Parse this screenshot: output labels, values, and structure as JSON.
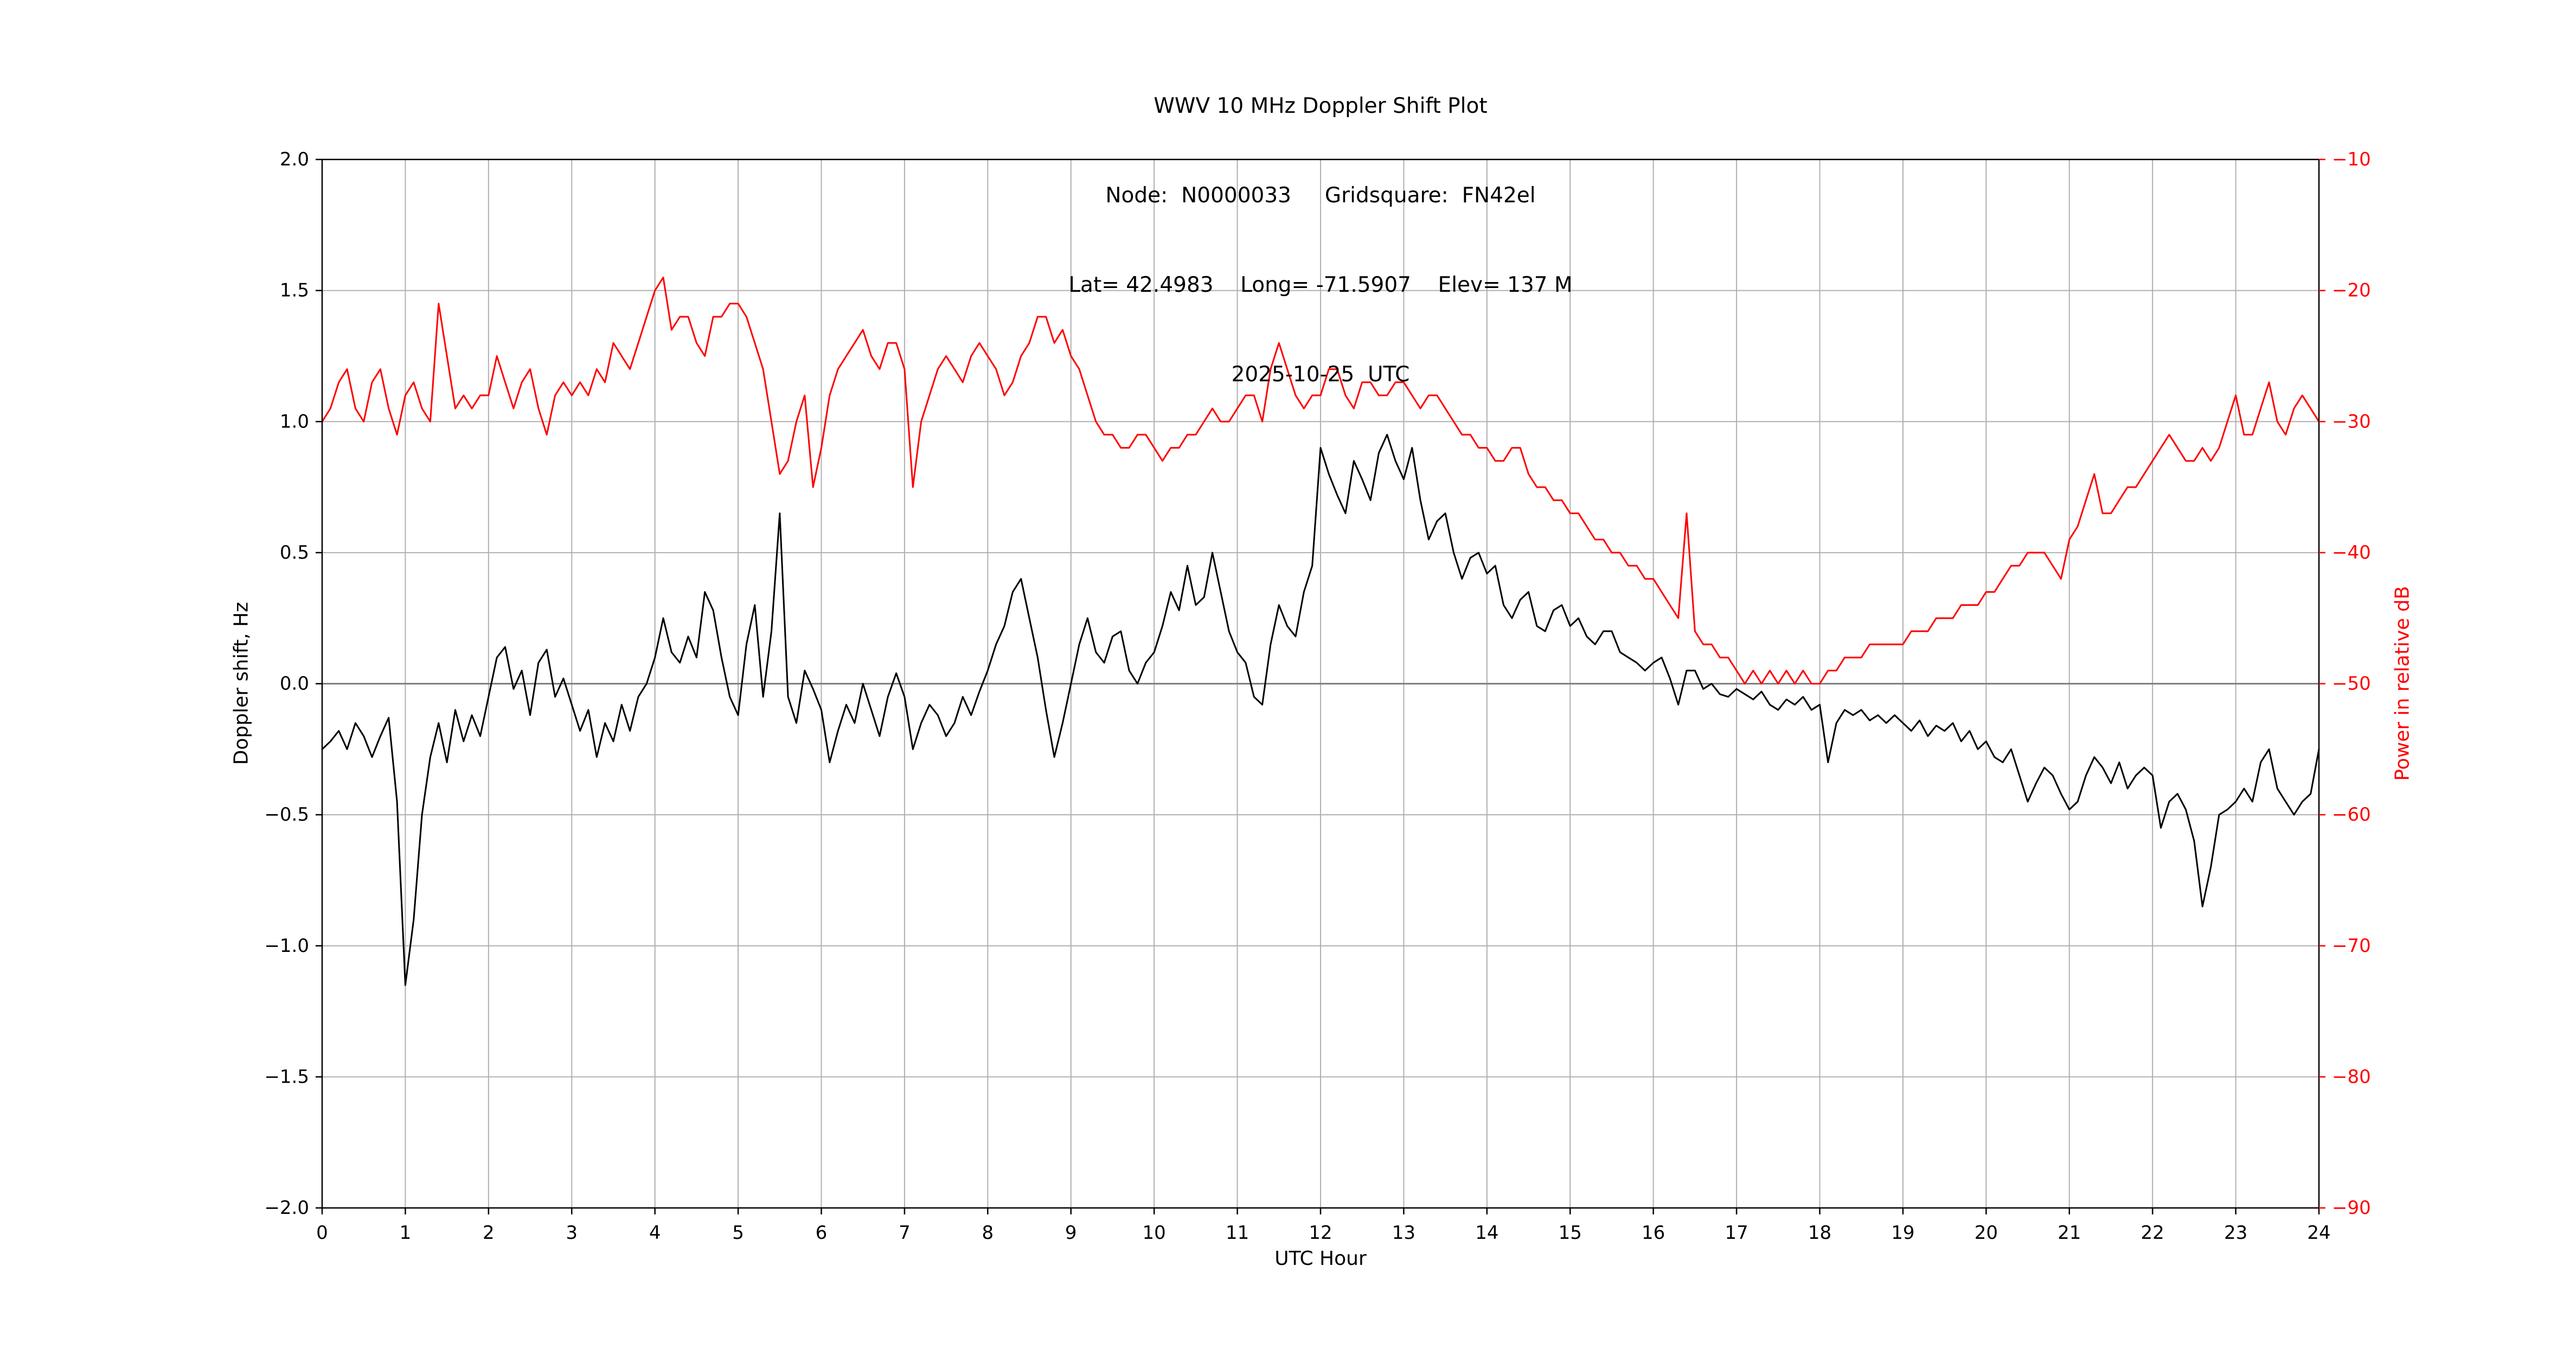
{
  "title": {
    "line1": "WWV 10 MHz Doppler Shift Plot",
    "line2": "Node:  N0000033     Gridsquare:  FN42el",
    "line3": "Lat= 42.4983    Long= -71.5907    Elev= 137 M",
    "line4": "2025-10-25  UTC"
  },
  "chart_data": {
    "type": "line",
    "title": "WWV 10 MHz Doppler Shift Plot",
    "x_label": "UTC Hour",
    "x_range": [
      0,
      24
    ],
    "x_ticks": [
      0,
      1,
      2,
      3,
      4,
      5,
      6,
      7,
      8,
      9,
      10,
      11,
      12,
      13,
      14,
      15,
      16,
      17,
      18,
      19,
      20,
      21,
      22,
      23,
      24
    ],
    "grid": true,
    "grid_color": "#b0b0b0",
    "frame_color": "#000000",
    "zero_line": {
      "value": 0.0,
      "color": "#808080"
    },
    "left_axis": {
      "label": "Doppler shift, Hz",
      "range": [
        -2.0,
        2.0
      ],
      "tick_values": [
        2.0,
        1.5,
        1.0,
        0.5,
        0.0,
        -0.5,
        -1.0,
        -1.5,
        -2.0
      ],
      "tick_labels": [
        "2.0",
        "1.5",
        "1.0",
        "0.5",
        "0.0",
        "−0.5",
        "−1.0",
        "−1.5",
        "−2.0"
      ],
      "color": "#000000"
    },
    "right_axis": {
      "label": "Power in relative dB",
      "range": [
        -90,
        -10
      ],
      "tick_values": [
        -10,
        -20,
        -30,
        -40,
        -50,
        -60,
        -70,
        -80,
        -90
      ],
      "tick_labels": [
        "−10",
        "−20",
        "−30",
        "−40",
        "−50",
        "−60",
        "−70",
        "−80",
        "−90"
      ],
      "color": "#ff0000"
    },
    "series": [
      {
        "name": "Power in relative dB",
        "axis": "right",
        "color": "#ff0000",
        "x_start": 0,
        "x_step": 0.1,
        "values": [
          -30,
          -29,
          -27,
          -26,
          -29,
          -30,
          -27,
          -26,
          -29,
          -31,
          -28,
          -27,
          -29,
          -30,
          -21,
          -25,
          -29,
          -28,
          -29,
          -28,
          -28,
          -25,
          -27,
          -29,
          -27,
          -26,
          -29,
          -31,
          -28,
          -27,
          -28,
          -27,
          -28,
          -26,
          -27,
          -24,
          -25,
          -26,
          -24,
          -22,
          -20,
          -19,
          -23,
          -22,
          -22,
          -24,
          -25,
          -22,
          -22,
          -21,
          -21,
          -22,
          -24,
          -26,
          -30,
          -34,
          -33,
          -30,
          -28,
          -35,
          -32,
          -28,
          -26,
          -25,
          -24,
          -23,
          -25,
          -26,
          -24,
          -24,
          -26,
          -35,
          -30,
          -28,
          -26,
          -25,
          -26,
          -27,
          -25,
          -24,
          -25,
          -26,
          -28,
          -27,
          -25,
          -24,
          -22,
          -22,
          -24,
          -23,
          -25,
          -26,
          -28,
          -30,
          -31,
          -31,
          -32,
          -32,
          -31,
          -31,
          -32,
          -33,
          -32,
          -32,
          -31,
          -31,
          -30,
          -29,
          -30,
          -30,
          -29,
          -28,
          -28,
          -30,
          -26,
          -24,
          -26,
          -28,
          -29,
          -28,
          -28,
          -26,
          -26,
          -28,
          -29,
          -27,
          -27,
          -28,
          -28,
          -27,
          -27,
          -28,
          -29,
          -28,
          -28,
          -29,
          -30,
          -31,
          -31,
          -32,
          -32,
          -33,
          -33,
          -32,
          -32,
          -34,
          -35,
          -35,
          -36,
          -36,
          -37,
          -37,
          -38,
          -39,
          -39,
          -40,
          -40,
          -41,
          -41,
          -42,
          -42,
          -43,
          -44,
          -45,
          -37,
          -46,
          -47,
          -47,
          -48,
          -48,
          -49,
          -50,
          -49,
          -50,
          -49,
          -50,
          -49,
          -50,
          -49,
          -50,
          -50,
          -49,
          -49,
          -48,
          -48,
          -48,
          -47,
          -47,
          -47,
          -47,
          -47,
          -46,
          -46,
          -46,
          -45,
          -45,
          -45,
          -44,
          -44,
          -44,
          -43,
          -43,
          -42,
          -41,
          -41,
          -40,
          -40,
          -40,
          -41,
          -42,
          -39,
          -38,
          -36,
          -34,
          -37,
          -37,
          -36,
          -35,
          -35,
          -34,
          -33,
          -32,
          -31,
          -32,
          -33,
          -33,
          -32,
          -33,
          -32,
          -30,
          -28,
          -31,
          -31,
          -29,
          -27,
          -30,
          -31,
          -29,
          -28,
          -29,
          -30
        ]
      },
      {
        "name": "Doppler shift, Hz",
        "axis": "left",
        "color": "#000000",
        "x_start": 0,
        "x_step": 0.1,
        "values": [
          -0.25,
          -0.22,
          -0.18,
          -0.25,
          -0.15,
          -0.2,
          -0.28,
          -0.2,
          -0.13,
          -0.45,
          -1.15,
          -0.9,
          -0.5,
          -0.28,
          -0.15,
          -0.3,
          -0.1,
          -0.22,
          -0.12,
          -0.2,
          -0.05,
          0.1,
          0.14,
          -0.02,
          0.05,
          -0.12,
          0.08,
          0.13,
          -0.05,
          0.02,
          -0.08,
          -0.18,
          -0.1,
          -0.28,
          -0.15,
          -0.22,
          -0.08,
          -0.18,
          -0.05,
          0.0,
          0.1,
          0.25,
          0.12,
          0.08,
          0.18,
          0.1,
          0.35,
          0.28,
          0.1,
          -0.05,
          -0.12,
          0.15,
          0.3,
          -0.05,
          0.2,
          0.65,
          -0.05,
          -0.15,
          0.05,
          -0.02,
          -0.1,
          -0.3,
          -0.18,
          -0.08,
          -0.15,
          0.0,
          -0.1,
          -0.2,
          -0.05,
          0.04,
          -0.05,
          -0.25,
          -0.15,
          -0.08,
          -0.12,
          -0.2,
          -0.15,
          -0.05,
          -0.12,
          -0.03,
          0.05,
          0.15,
          0.22,
          0.35,
          0.4,
          0.25,
          0.1,
          -0.1,
          -0.28,
          -0.15,
          0.0,
          0.15,
          0.25,
          0.12,
          0.08,
          0.18,
          0.2,
          0.05,
          0.0,
          0.08,
          0.12,
          0.22,
          0.35,
          0.28,
          0.45,
          0.3,
          0.33,
          0.5,
          0.35,
          0.2,
          0.12,
          0.08,
          -0.05,
          -0.08,
          0.15,
          0.3,
          0.22,
          0.18,
          0.35,
          0.45,
          0.9,
          0.8,
          0.72,
          0.65,
          0.85,
          0.78,
          0.7,
          0.88,
          0.95,
          0.85,
          0.78,
          0.9,
          0.7,
          0.55,
          0.62,
          0.65,
          0.5,
          0.4,
          0.48,
          0.5,
          0.42,
          0.45,
          0.3,
          0.25,
          0.32,
          0.35,
          0.22,
          0.2,
          0.28,
          0.3,
          0.22,
          0.25,
          0.18,
          0.15,
          0.2,
          0.2,
          0.12,
          0.1,
          0.08,
          0.05,
          0.08,
          0.1,
          0.02,
          -0.08,
          0.05,
          0.05,
          -0.02,
          0.0,
          -0.04,
          -0.05,
          -0.02,
          -0.04,
          -0.06,
          -0.03,
          -0.08,
          -0.1,
          -0.06,
          -0.08,
          -0.05,
          -0.1,
          -0.08,
          -0.3,
          -0.15,
          -0.1,
          -0.12,
          -0.1,
          -0.14,
          -0.12,
          -0.15,
          -0.12,
          -0.15,
          -0.18,
          -0.14,
          -0.2,
          -0.16,
          -0.18,
          -0.15,
          -0.22,
          -0.18,
          -0.25,
          -0.22,
          -0.28,
          -0.3,
          -0.25,
          -0.35,
          -0.45,
          -0.38,
          -0.32,
          -0.35,
          -0.42,
          -0.48,
          -0.45,
          -0.35,
          -0.28,
          -0.32,
          -0.38,
          -0.3,
          -0.4,
          -0.35,
          -0.32,
          -0.35,
          -0.55,
          -0.45,
          -0.42,
          -0.48,
          -0.6,
          -0.85,
          -0.7,
          -0.5,
          -0.48,
          -0.45,
          -0.4,
          -0.45,
          -0.3,
          -0.25,
          -0.4,
          -0.45,
          -0.5,
          -0.45,
          -0.42,
          -0.25
        ]
      }
    ]
  }
}
